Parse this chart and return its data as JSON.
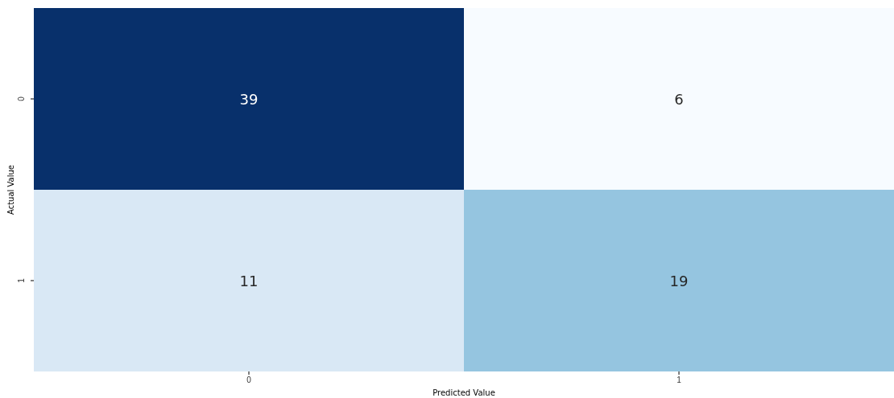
{
  "chart_data": {
    "type": "heatmap",
    "xlabel": "Predicted Value",
    "ylabel": "Actual Value",
    "categories": [
      "0",
      "1"
    ],
    "y_categories": [
      "0",
      "1"
    ],
    "cells": [
      [
        39,
        6
      ],
      [
        11,
        19
      ]
    ],
    "data_labels": true
  }
}
